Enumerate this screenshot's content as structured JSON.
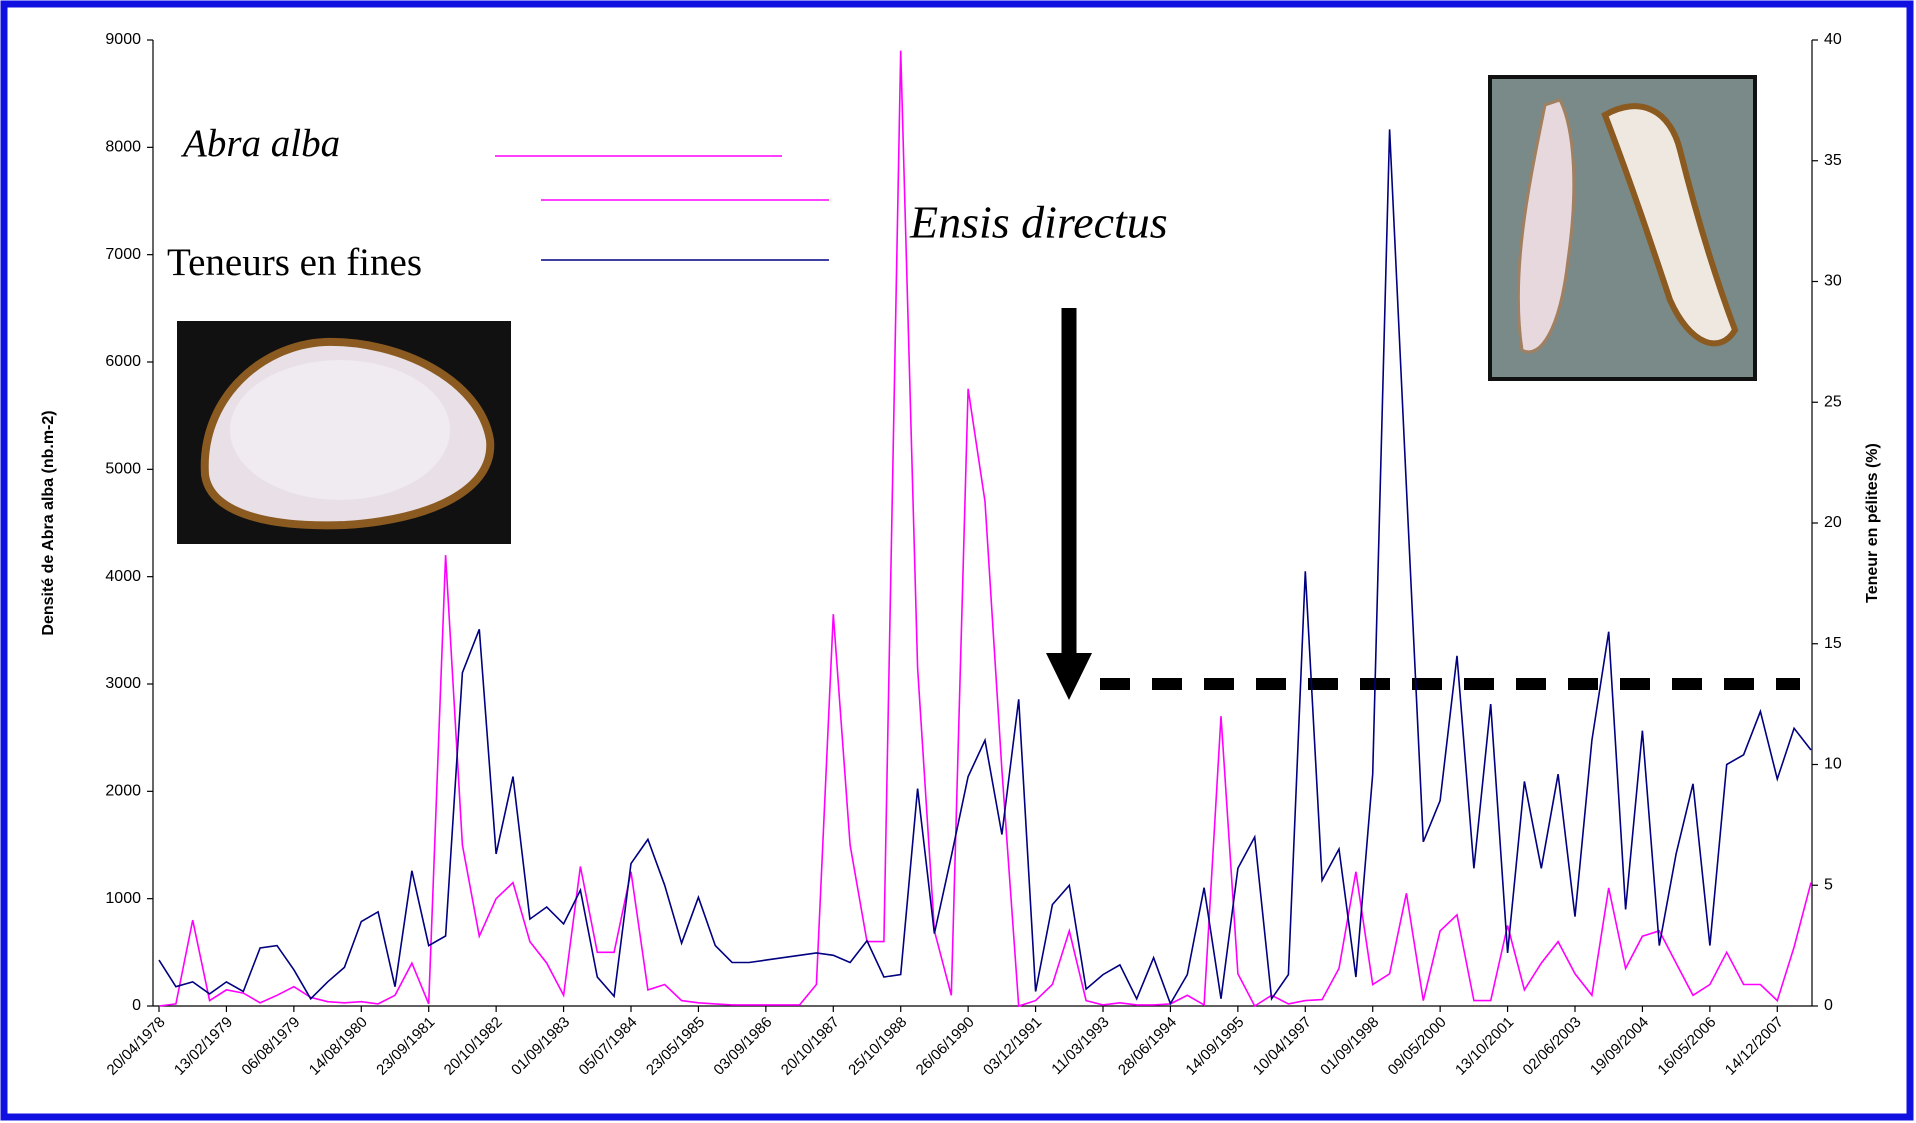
{
  "chart_data": {
    "type": "line",
    "y_label": "Densité de Abra alba (nb.m-2)",
    "y2_label": "Teneur en pélites (%)",
    "annotation": "Ensis directus",
    "categories": [
      "20/04/1978",
      null,
      null,
      null,
      "13/02/1979",
      null,
      null,
      null,
      "06/08/1979",
      null,
      null,
      null,
      "14/08/1980",
      null,
      null,
      null,
      "23/09/1981",
      null,
      null,
      null,
      "20/10/1982",
      null,
      null,
      null,
      "01/09/1983",
      null,
      null,
      null,
      "05/07/1984",
      null,
      null,
      null,
      "23/05/1985",
      null,
      null,
      null,
      "03/09/1986",
      null,
      null,
      null,
      "20/10/1987",
      null,
      null,
      null,
      "25/10/1988",
      null,
      null,
      null,
      "26/06/1990",
      null,
      null,
      null,
      "03/12/1991",
      null,
      null,
      null,
      "11/03/1993",
      null,
      null,
      null,
      "28/06/1994",
      null,
      null,
      null,
      "14/09/1995",
      null,
      null,
      null,
      "10/04/1997",
      null,
      null,
      null,
      "01/09/1998",
      null,
      null,
      null,
      "09/05/2000",
      null,
      null,
      null,
      "13/10/2001",
      null,
      null,
      null,
      "02/06/2003",
      null,
      null,
      null,
      "19/09/2004",
      null,
      null,
      null,
      "16/05/2006",
      null,
      null,
      null,
      "14/12/2007",
      null,
      null
    ],
    "series": [
      {
        "name": "Abra alba",
        "color": "#ff00ff",
        "axis": "y",
        "values": [
          0,
          20,
          800,
          50,
          150,
          120,
          30,
          100,
          180,
          80,
          40,
          30,
          40,
          20,
          100,
          400,
          20,
          4200,
          1500,
          650,
          1000,
          1150,
          600,
          400,
          100,
          1300,
          500,
          500,
          1250,
          150,
          200,
          50,
          30,
          20,
          10,
          10,
          10,
          10,
          10,
          200,
          3650,
          1500,
          600,
          600,
          8900,
          3150,
          700,
          100,
          5750,
          4700,
          2200,
          0,
          50,
          200,
          700,
          50,
          10,
          30,
          10,
          10,
          20,
          100,
          10,
          2700,
          300,
          0,
          100,
          20,
          50,
          60,
          350,
          1250,
          200,
          300,
          1050,
          50,
          700,
          850,
          50,
          50,
          750,
          150,
          400,
          600,
          300,
          100,
          1100,
          350,
          650,
          700,
          400,
          100,
          200,
          500,
          200,
          200,
          50,
          550,
          1150
        ]
      },
      {
        "name": "Teneurs en fines",
        "color": "#000080",
        "axis": "y2",
        "values": [
          1.9,
          0.8,
          1,
          0.5,
          1,
          0.6,
          2.4,
          2.5,
          1.5,
          0.3,
          1,
          1.6,
          3.5,
          3.9,
          0.8,
          5.6,
          2.5,
          2.9,
          13.8,
          15.6,
          6.3,
          9.5,
          3.6,
          4.1,
          3.4,
          4.8,
          1.2,
          0.4,
          5.9,
          6.9,
          5,
          2.6,
          4.5,
          2.5,
          1.8,
          1.8,
          1.9,
          2,
          2.1,
          2.2,
          2.1,
          1.8,
          2.7,
          1.2,
          1.3,
          9,
          3,
          6.2,
          9.5,
          11,
          7.1,
          12.7,
          0.6,
          4.2,
          5,
          0.7,
          1.3,
          1.7,
          0.3,
          2,
          0.1,
          1.3,
          4.9,
          0.3,
          5.7,
          7,
          0.3,
          1.3,
          18,
          5.2,
          6.5,
          1.2,
          9.6,
          36.3,
          21.5,
          6.8,
          8.5,
          14.5,
          5.7,
          12.5,
          2.2,
          9.3,
          5.7,
          9.6,
          3.7,
          11,
          15.5,
          4,
          11.4,
          2.5,
          6.3,
          9.2,
          2.5,
          10,
          10.4,
          12.2,
          9.4,
          11.5,
          10.6
        ]
      }
    ],
    "ylim": [
      0,
      9000
    ],
    "yticks": [
      0,
      1000,
      2000,
      3000,
      4000,
      5000,
      6000,
      7000,
      8000,
      9000
    ],
    "y2lim": [
      0,
      40
    ],
    "y2ticks": [
      0,
      5,
      10,
      15,
      20,
      25,
      30,
      35,
      40
    ]
  }
}
